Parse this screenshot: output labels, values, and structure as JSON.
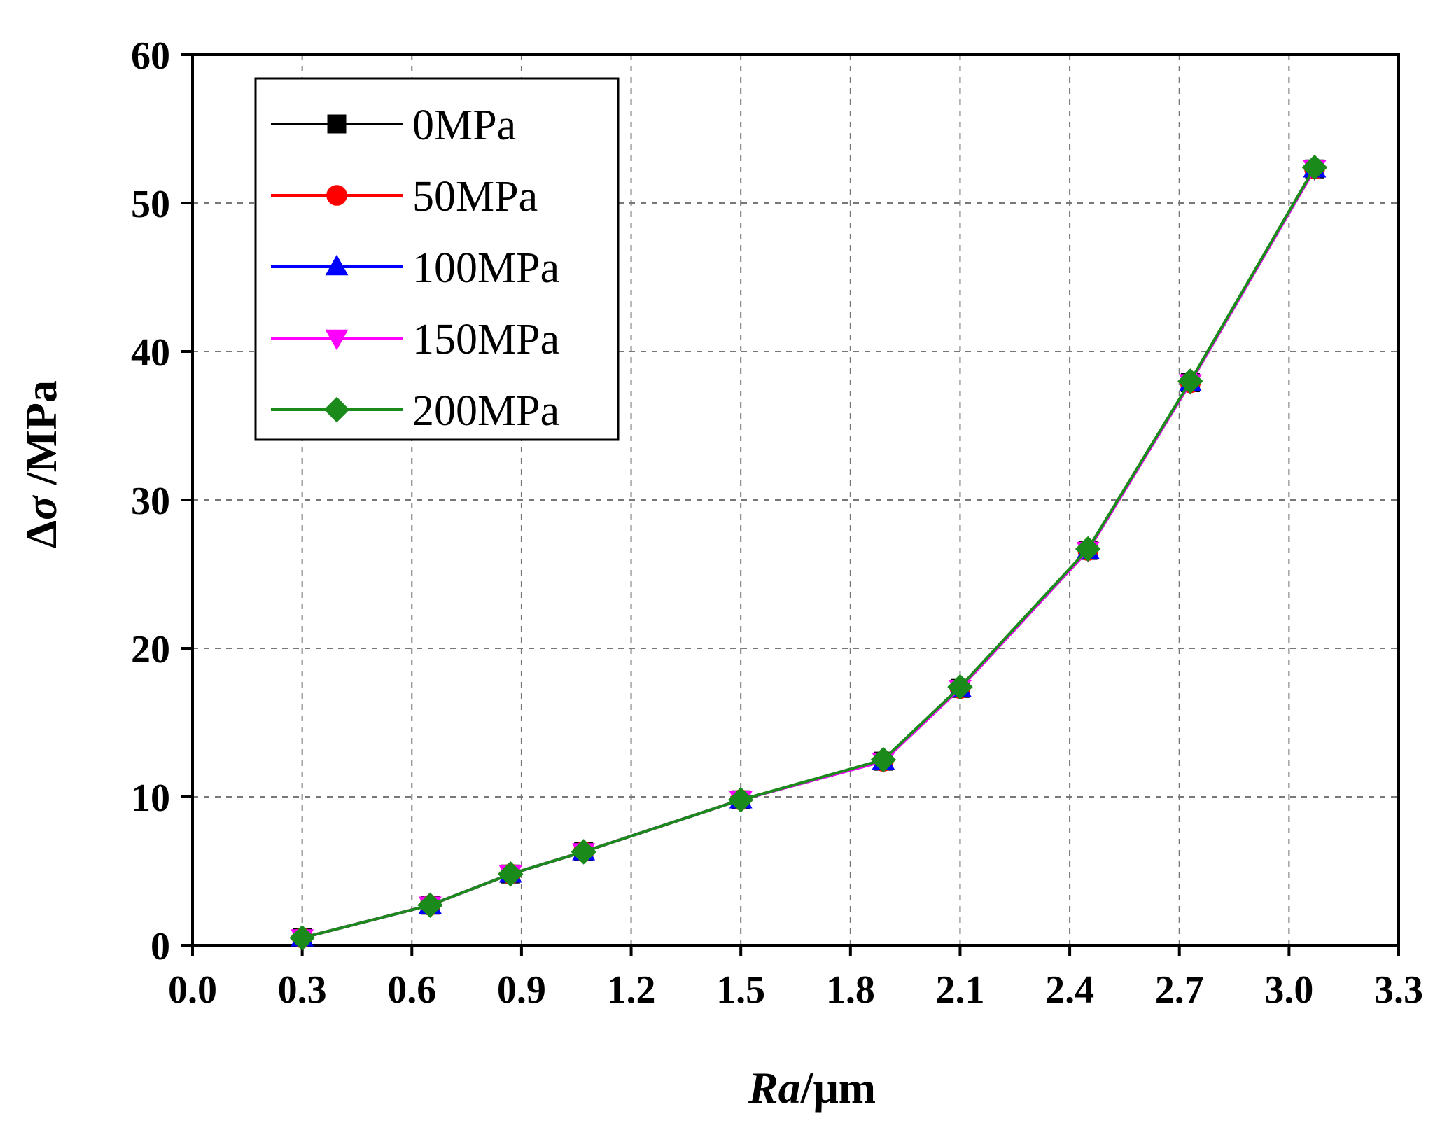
{
  "chart_data": {
    "type": "line",
    "title": "",
    "xlabel": "Ra/μm",
    "xlabel_parts": {
      "italic": "Ra",
      "rest": "/μm"
    },
    "ylabel": "Δσ /MPa",
    "ylabel_parts": {
      "delta": "Δ",
      "sigma": "σ",
      "rest": " /MPa"
    },
    "xlim": [
      0.0,
      3.3
    ],
    "ylim": [
      0,
      60
    ],
    "x_ticks": [
      "0.0",
      "0.3",
      "0.6",
      "0.9",
      "1.2",
      "1.5",
      "1.8",
      "2.1",
      "2.4",
      "2.7",
      "3.0",
      "3.3"
    ],
    "y_ticks": [
      "0",
      "10",
      "20",
      "30",
      "40",
      "50",
      "60"
    ],
    "grid": true,
    "legend_position": "top-left",
    "x": [
      0.3,
      0.65,
      0.87,
      1.07,
      1.5,
      1.89,
      2.1,
      2.45,
      2.73,
      3.07
    ],
    "series": [
      {
        "name": "0MPa",
        "color": "#000000",
        "marker": "square",
        "values": [
          0.5,
          2.7,
          4.8,
          6.3,
          9.8,
          12.4,
          17.3,
          26.6,
          37.9,
          52.3
        ]
      },
      {
        "name": "50MPa",
        "color": "#ff0000",
        "marker": "circle",
        "values": [
          0.5,
          2.7,
          4.8,
          6.3,
          9.8,
          12.4,
          17.3,
          26.6,
          37.9,
          52.3
        ]
      },
      {
        "name": "100MPa",
        "color": "#0000ff",
        "marker": "triangle-up",
        "values": [
          0.5,
          2.7,
          4.8,
          6.3,
          9.8,
          12.4,
          17.3,
          26.6,
          37.9,
          52.3
        ]
      },
      {
        "name": "150MPa",
        "color": "#ff00ff",
        "marker": "triangle-down",
        "values": [
          0.5,
          2.7,
          4.8,
          6.3,
          9.8,
          12.4,
          17.3,
          26.6,
          37.9,
          52.3
        ]
      },
      {
        "name": "200MPa",
        "color": "#1a8a1a",
        "marker": "diamond",
        "values": [
          0.5,
          2.7,
          4.8,
          6.3,
          9.8,
          12.5,
          17.4,
          26.7,
          38.0,
          52.4
        ]
      }
    ]
  }
}
